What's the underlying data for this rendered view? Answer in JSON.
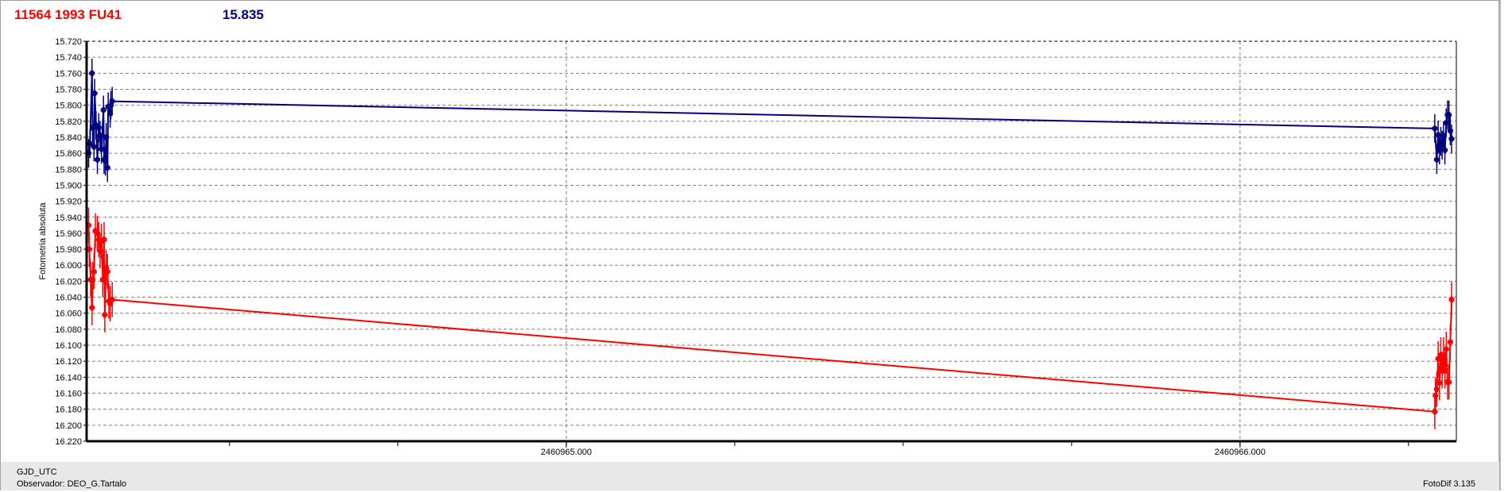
{
  "header": {
    "object": "11564 1993 FU41",
    "value": "15.835"
  },
  "footer": {
    "x_name": "GJD_UTC",
    "observer": "Observador: DEO_G.Tartalo",
    "version": "FotoDif 3.135"
  },
  "colors": {
    "series1": "#000080",
    "series2": "#ff0000",
    "grid": "#808080"
  },
  "chart_data": {
    "type": "line",
    "ylabel": "Fotometria absoluta",
    "ylim": [
      15.72,
      16.22
    ],
    "y_inverted": false,
    "yticks": [
      "15.720",
      "15.740",
      "15.760",
      "15.780",
      "15.800",
      "15.820",
      "15.840",
      "15.860",
      "15.880",
      "15.900",
      "15.920",
      "15.940",
      "15.960",
      "15.980",
      "16.000",
      "16.020",
      "16.040",
      "16.060",
      "16.080",
      "16.100",
      "16.120",
      "16.140",
      "16.160",
      "16.180",
      "16.200",
      "16.220"
    ],
    "xlim": [
      2460964.288,
      2460966.321
    ],
    "xticks": [
      {
        "value": 2460965.0,
        "label": "2460965.000"
      },
      {
        "value": 2460966.0,
        "label": "2460966.000"
      }
    ],
    "x_minor_step": 0.25,
    "grid": true,
    "series": [
      {
        "color": "#000080",
        "error": 0.018,
        "x": [
          2460964.291,
          2460964.293,
          2460964.296,
          2460964.297,
          2460964.299,
          2460964.3,
          2460964.302,
          2460964.304,
          2460964.306,
          2460964.308,
          2460964.31,
          2460964.313,
          2460964.314,
          2460964.316,
          2460964.317,
          2460964.319,
          2460964.32,
          2460964.323,
          2460964.324,
          2460964.326,
          2460966.289,
          2460966.292,
          2460966.294,
          2460966.296,
          2460966.298,
          2460966.3,
          2460966.302,
          2460966.304,
          2460966.306,
          2460966.308,
          2460966.31,
          2460966.312,
          2460966.314
        ],
        "y": [
          15.86,
          15.848,
          15.76,
          15.828,
          15.852,
          15.785,
          15.825,
          15.868,
          15.828,
          15.838,
          15.855,
          15.806,
          15.868,
          15.87,
          15.84,
          15.878,
          15.802,
          15.81,
          15.8,
          15.795,
          15.829,
          15.868,
          15.837,
          15.856,
          15.845,
          15.85,
          15.838,
          15.856,
          15.822,
          15.812,
          15.812,
          15.832,
          15.842
        ]
      },
      {
        "color": "#ff0000",
        "error": 0.022,
        "x": [
          2460964.291,
          2460964.292,
          2460964.294,
          2460964.296,
          2460964.297,
          2460964.299,
          2460964.301,
          2460964.304,
          2460964.306,
          2460964.308,
          2460964.31,
          2460964.312,
          2460964.314,
          2460964.315,
          2460964.317,
          2460964.319,
          2460964.321,
          2460964.323,
          2460964.326,
          2460966.289,
          2460966.29,
          2460966.292,
          2460966.294,
          2460966.296,
          2460966.298,
          2460966.3,
          2460966.302,
          2460966.304,
          2460966.306,
          2460966.308,
          2460966.31,
          2460966.312,
          2460966.314
        ],
        "y": [
          15.95,
          15.98,
          16.018,
          16.053,
          16.018,
          16.008,
          15.957,
          15.96,
          15.968,
          15.982,
          15.97,
          16.018,
          15.968,
          16.062,
          16.003,
          16.008,
          16.045,
          16.048,
          16.043,
          16.183,
          16.163,
          16.155,
          16.117,
          16.147,
          16.112,
          16.132,
          16.112,
          16.132,
          16.105,
          16.146,
          16.146,
          16.096,
          16.043
        ]
      }
    ]
  }
}
